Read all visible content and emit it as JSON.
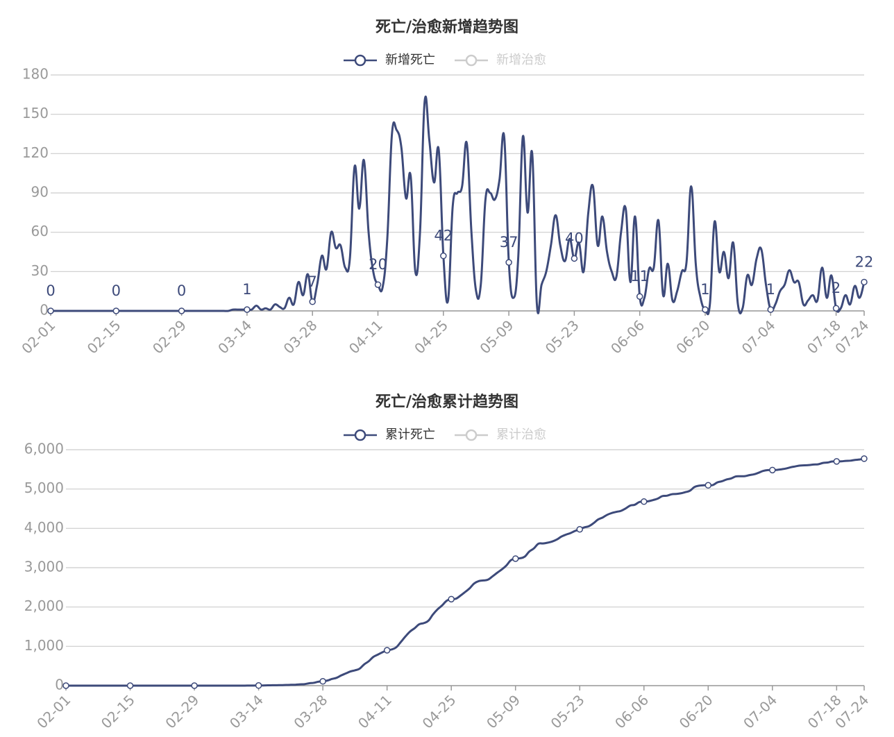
{
  "chart_data": [
    {
      "type": "line",
      "title": "死亡/治愈新增趋势图",
      "grid": true,
      "data_labels": true,
      "categories": [
        "02-01",
        null,
        null,
        null,
        null,
        null,
        null,
        null,
        null,
        null,
        null,
        null,
        null,
        null,
        "02-15",
        null,
        null,
        null,
        null,
        null,
        null,
        null,
        null,
        null,
        null,
        null,
        null,
        null,
        "02-29",
        null,
        null,
        null,
        null,
        null,
        null,
        null,
        null,
        null,
        null,
        null,
        null,
        null,
        "03-14",
        null,
        null,
        null,
        null,
        null,
        null,
        null,
        null,
        null,
        null,
        null,
        null,
        null,
        "03-28",
        null,
        null,
        null,
        null,
        null,
        null,
        null,
        null,
        null,
        null,
        null,
        null,
        null,
        "04-11",
        null,
        null,
        null,
        null,
        null,
        null,
        null,
        null,
        null,
        null,
        null,
        null,
        null,
        "04-25",
        null,
        null,
        null,
        null,
        null,
        null,
        null,
        null,
        null,
        null,
        null,
        null,
        null,
        "05-09",
        null,
        null,
        null,
        null,
        null,
        null,
        null,
        null,
        null,
        null,
        null,
        null,
        null,
        "05-23",
        null,
        null,
        null,
        null,
        null,
        null,
        null,
        null,
        null,
        null,
        null,
        null,
        null,
        "06-06",
        null,
        null,
        null,
        null,
        null,
        null,
        null,
        null,
        null,
        null,
        null,
        null,
        null,
        "06-20",
        null,
        null,
        null,
        null,
        null,
        null,
        null,
        null,
        null,
        null,
        null,
        null,
        null,
        "07-04",
        null,
        null,
        null,
        null,
        null,
        null,
        null,
        null,
        null,
        null,
        null,
        null,
        null,
        "07-18",
        null,
        null,
        null,
        null,
        null,
        "07-24"
      ],
      "series": [
        {
          "name": "新增死亡",
          "color": "#3d4a7a",
          "visible": true,
          "values": [
            0,
            0,
            0,
            0,
            0,
            0,
            0,
            0,
            0,
            0,
            0,
            0,
            0,
            0,
            0,
            0,
            0,
            0,
            0,
            0,
            0,
            0,
            0,
            0,
            0,
            0,
            0,
            0,
            0,
            0,
            0,
            0,
            0,
            0,
            0,
            0,
            0,
            0,
            0,
            1,
            1,
            1,
            1,
            1,
            4,
            1,
            2,
            1,
            5,
            3,
            2,
            10,
            5,
            22,
            12,
            28,
            7,
            20,
            42,
            32,
            60,
            48,
            50,
            33,
            40,
            110,
            78,
            115,
            60,
            30,
            20,
            18,
            55,
            135,
            138,
            125,
            86,
            103,
            30,
            60,
            160,
            130,
            98,
            123,
            42,
            8,
            80,
            90,
            95,
            128,
            60,
            15,
            20,
            85,
            90,
            85,
            100,
            133,
            37,
            10,
            40,
            133,
            75,
            120,
            5,
            20,
            30,
            50,
            73,
            50,
            38,
            55,
            40,
            52,
            30,
            75,
            95,
            50,
            72,
            45,
            30,
            26,
            60,
            78,
            22,
            72,
            11,
            10,
            32,
            33,
            69,
            12,
            36,
            8,
            15,
            30,
            37,
            95,
            35,
            10,
            1,
            5,
            68,
            30,
            45,
            25,
            52,
            5,
            2,
            27,
            20,
            40,
            47,
            20,
            1,
            5,
            15,
            20,
            31,
            22,
            22,
            5,
            8,
            12,
            8,
            33,
            10,
            27,
            2,
            2,
            12,
            5,
            19,
            10,
            22
          ]
        },
        {
          "name": "新增治愈",
          "color": "#cccccc",
          "visible": false
        }
      ],
      "ylim": [
        0,
        180
      ],
      "yticks": [
        0,
        30,
        60,
        90,
        120,
        150,
        180
      ]
    },
    {
      "type": "line",
      "title": "死亡/治愈累计趋势图",
      "grid": true,
      "data_labels": false,
      "categories": [
        "02-01",
        null,
        null,
        null,
        null,
        null,
        null,
        null,
        null,
        null,
        null,
        null,
        null,
        null,
        "02-15",
        null,
        null,
        null,
        null,
        null,
        null,
        null,
        null,
        null,
        null,
        null,
        null,
        null,
        "02-29",
        null,
        null,
        null,
        null,
        null,
        null,
        null,
        null,
        null,
        null,
        null,
        null,
        null,
        "03-14",
        null,
        null,
        null,
        null,
        null,
        null,
        null,
        null,
        null,
        null,
        null,
        null,
        null,
        "03-28",
        null,
        null,
        null,
        null,
        null,
        null,
        null,
        null,
        null,
        null,
        null,
        null,
        null,
        "04-11",
        null,
        null,
        null,
        null,
        null,
        null,
        null,
        null,
        null,
        null,
        null,
        null,
        null,
        "04-25",
        null,
        null,
        null,
        null,
        null,
        null,
        null,
        null,
        null,
        null,
        null,
        null,
        null,
        "05-09",
        null,
        null,
        null,
        null,
        null,
        null,
        null,
        null,
        null,
        null,
        null,
        null,
        null,
        "05-23",
        null,
        null,
        null,
        null,
        null,
        null,
        null,
        null,
        null,
        null,
        null,
        null,
        null,
        "06-06",
        null,
        null,
        null,
        null,
        null,
        null,
        null,
        null,
        null,
        null,
        null,
        null,
        null,
        "06-20",
        null,
        null,
        null,
        null,
        null,
        null,
        null,
        null,
        null,
        null,
        null,
        null,
        null,
        "07-04",
        null,
        null,
        null,
        null,
        null,
        null,
        null,
        null,
        null,
        null,
        null,
        null,
        null,
        "07-18",
        null,
        null,
        null,
        null,
        null,
        "07-24"
      ],
      "series": [
        {
          "name": "累计死亡",
          "color": "#3d4a7a",
          "visible": true,
          "values": [
            0,
            0,
            0,
            0,
            0,
            0,
            0,
            0,
            0,
            0,
            0,
            0,
            0,
            0,
            0,
            0,
            0,
            0,
            0,
            0,
            0,
            0,
            0,
            0,
            0,
            0,
            0,
            0,
            0,
            0,
            0,
            0,
            0,
            0,
            0,
            0,
            0,
            0,
            0,
            1,
            2,
            3,
            4,
            5,
            9,
            10,
            12,
            13,
            18,
            21,
            23,
            33,
            38,
            60,
            72,
            100,
            110,
            130,
            170,
            200,
            260,
            310,
            360,
            390,
            430,
            540,
            620,
            730,
            790,
            850,
            900,
            920,
            975,
            1110,
            1250,
            1375,
            1460,
            1560,
            1590,
            1650,
            1810,
            1940,
            2040,
            2160,
            2200,
            2210,
            2290,
            2380,
            2475,
            2600,
            2660,
            2675,
            2695,
            2780,
            2870,
            2955,
            3055,
            3190,
            3230,
            3240,
            3280,
            3410,
            3490,
            3610,
            3615,
            3635,
            3665,
            3715,
            3790,
            3840,
            3880,
            3935,
            3975,
            4025,
            4055,
            4130,
            4225,
            4275,
            4345,
            4390,
            4420,
            4445,
            4505,
            4580,
            4600,
            4670,
            4680,
            4690,
            4720,
            4755,
            4820,
            4830,
            4865,
            4875,
            4890,
            4920,
            4955,
            5050,
            5085,
            5095,
            5095,
            5100,
            5168,
            5198,
            5243,
            5268,
            5320,
            5325,
            5327,
            5354,
            5374,
            5414,
            5461,
            5481,
            5482,
            5487,
            5502,
            5522,
            5553,
            5575,
            5597,
            5602,
            5610,
            5622,
            5630,
            5663,
            5673,
            5700,
            5702,
            5704,
            5716,
            5721,
            5740,
            5750,
            5772
          ]
        },
        {
          "name": "累计治愈",
          "color": "#cccccc",
          "visible": false
        }
      ],
      "ylim": [
        0,
        6000
      ],
      "yticks": [
        0,
        {
          "value": 1000,
          "label": "1,000"
        },
        {
          "value": 2000,
          "label": "2,000"
        },
        {
          "value": 3000,
          "label": "3,000"
        },
        {
          "value": 4000,
          "label": "4,000"
        },
        {
          "value": 5000,
          "label": "5,000"
        },
        {
          "value": 6000,
          "label": "6,000"
        }
      ]
    }
  ]
}
